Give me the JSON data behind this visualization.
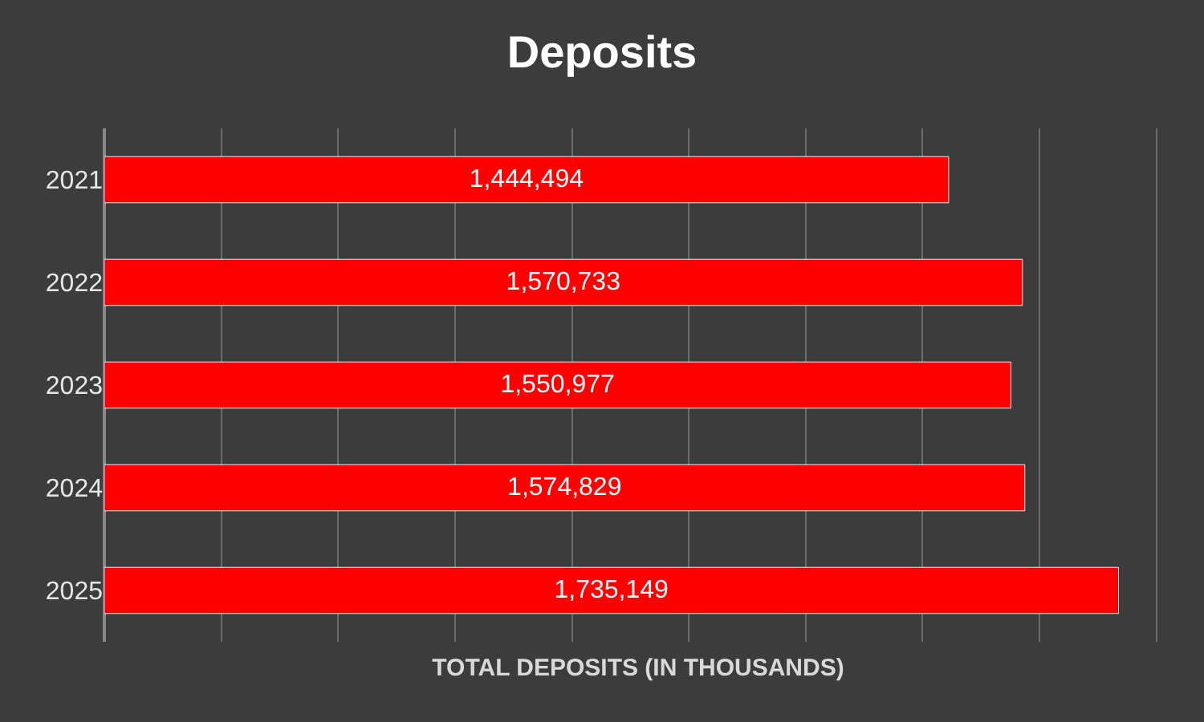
{
  "chart_data": {
    "type": "bar",
    "orientation": "horizontal",
    "title": "Deposits",
    "xlabel": "TOTAL DEPOSITS (IN THOUSANDS)",
    "categories": [
      "2021",
      "2022",
      "2023",
      "2024",
      "2025"
    ],
    "values": [
      1444494,
      1570733,
      1550977,
      1574829,
      1735149
    ],
    "value_labels": [
      "1,444,494",
      "1,570,733",
      "1,550,977",
      "1,574,829",
      "1,735,149"
    ],
    "color": "#ff0000",
    "tick_labels": "y",
    "grid": "x"
  }
}
